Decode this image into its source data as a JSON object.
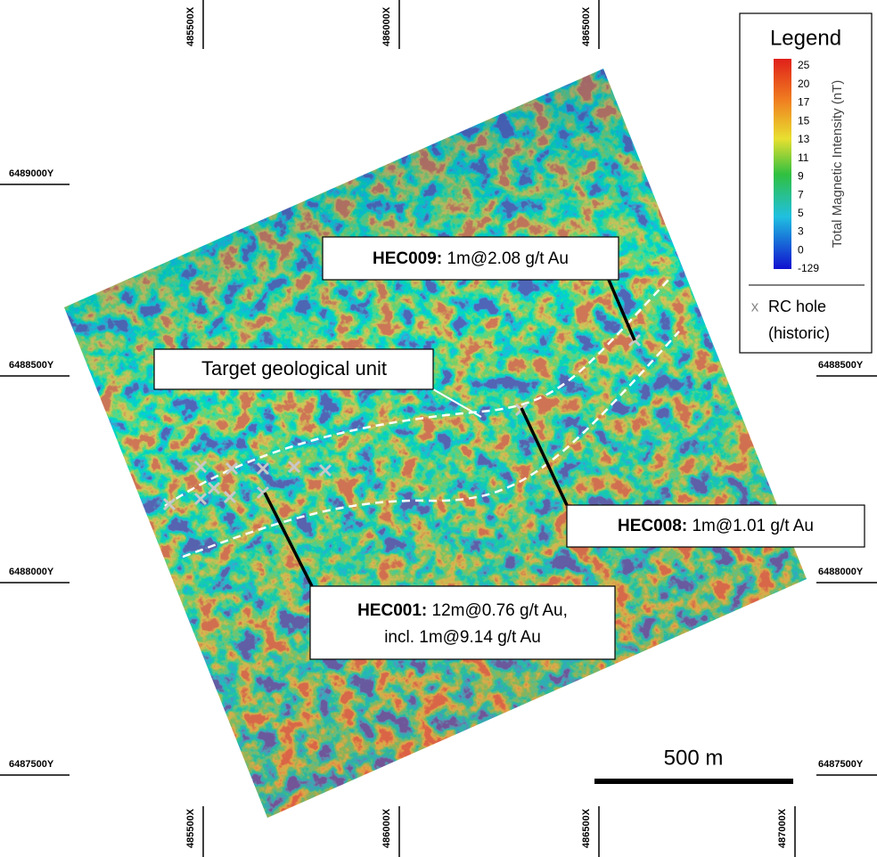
{
  "grid": {
    "top": [
      "485500X",
      "486000X",
      "486500X"
    ],
    "bottom": [
      "485500X",
      "486000X",
      "486500X",
      "487000X"
    ],
    "left": [
      "6489000Y",
      "6488500Y",
      "6488000Y",
      "6487500Y"
    ],
    "right": [
      "6488500Y",
      "6488000Y",
      "6487500Y"
    ]
  },
  "legend": {
    "title": "Legend",
    "scale_labels": [
      25,
      20,
      17,
      15,
      13,
      11,
      9,
      7,
      5,
      3,
      0,
      -129
    ],
    "axis_label": "Total Magnetic Intensity (nT)",
    "symbol": "x",
    "item": [
      "RC hole",
      "(historic)"
    ]
  },
  "callouts": [
    {
      "id": "HEC009:",
      "text": "1m@2.08 g/t Au"
    },
    {
      "id": "HEC008:",
      "text": "1m@1.01 g/t Au"
    },
    {
      "id": "HEC001:",
      "text": "12m@0.76 g/t Au,",
      "text2": "incl. 1m@9.14 g/t Au"
    }
  ],
  "target_label": "Target geological unit",
  "scale_bar": "500 m"
}
